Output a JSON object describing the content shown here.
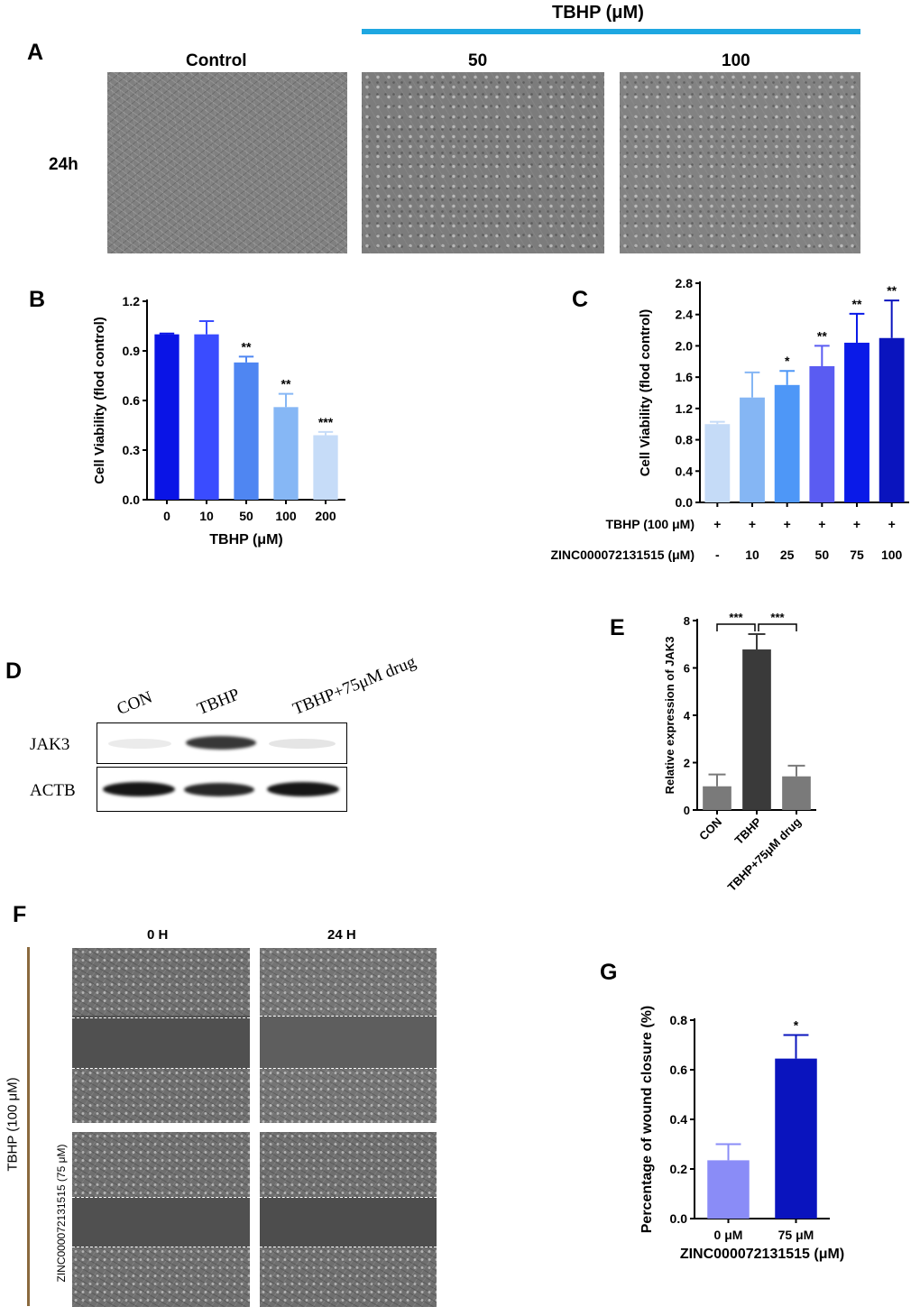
{
  "panel_A": {
    "letter": "A",
    "treatment_header": "TBHP (μM)",
    "columns": [
      "Control",
      "50",
      "100"
    ],
    "row_label": "24h",
    "bar_color": "#1ea7e1"
  },
  "panel_D": {
    "letter": "D",
    "lanes": [
      "CON",
      "TBHP",
      "TBHP+75μM drug"
    ],
    "rows": [
      "JAK3",
      "ACTB"
    ],
    "jak3_band_intensity": [
      0.08,
      0.85,
      0.1
    ],
    "actb_band_intensity": [
      0.95,
      0.9,
      0.95
    ]
  },
  "panel_F": {
    "letter": "F",
    "columns": [
      "0 H",
      "24 H"
    ],
    "outer_label": "TBHP (100 μM)",
    "row_label_bottom": "ZINC000072131515 (75 μM)",
    "bracket_color": "#8b6a3e"
  },
  "chart_data": [
    {
      "panel": "B",
      "type": "bar",
      "categories": [
        "0",
        "10",
        "50",
        "100",
        "200"
      ],
      "values": [
        1.0,
        1.0,
        0.83,
        0.56,
        0.39
      ],
      "errors": [
        0.005,
        0.08,
        0.035,
        0.08,
        0.02
      ],
      "significance": [
        "",
        "",
        "**",
        "**",
        "***"
      ],
      "colors": [
        "#0a14e6",
        "#3a4cff",
        "#4f86f2",
        "#86b7f5",
        "#c6dcf8"
      ],
      "xlabel": "TBHP (μM)",
      "ylabel": "Cell Viability (flod control)",
      "ylim": [
        0,
        1.2
      ],
      "yticks": [
        "0.0",
        "0.3",
        "0.6",
        "0.9",
        "1.2"
      ]
    },
    {
      "panel": "C",
      "type": "bar",
      "categories": [
        "-",
        "10",
        "25",
        "50",
        "75",
        "100"
      ],
      "values": [
        1.0,
        1.34,
        1.5,
        1.74,
        2.04,
        2.1
      ],
      "errors": [
        0.03,
        0.32,
        0.18,
        0.26,
        0.37,
        0.48
      ],
      "significance": [
        "",
        "",
        "*",
        "**",
        "**",
        "**"
      ],
      "colors": [
        "#c5dbf7",
        "#85b6f4",
        "#4e97f7",
        "#5a5cf2",
        "#0a1ae8",
        "#0a14be"
      ],
      "row_labels": [
        "TBHP (100 μM)",
        "ZINC000072131515 (μM)"
      ],
      "tbhp_row": [
        "+",
        "+",
        "+",
        "+",
        "+",
        "+"
      ],
      "ylabel": "Cell Viability (flod control)",
      "ylim": [
        0,
        2.8
      ],
      "yticks": [
        "0.0",
        "0.4",
        "0.8",
        "1.2",
        "1.6",
        "2.0",
        "2.4",
        "2.8"
      ]
    },
    {
      "panel": "E",
      "type": "bar",
      "categories": [
        "CON",
        "TBHP",
        "TBHP+75μM drug"
      ],
      "values": [
        1.0,
        6.78,
        1.42
      ],
      "errors": [
        0.5,
        0.65,
        0.45
      ],
      "significance_brackets": [
        "***",
        "***"
      ],
      "colors": [
        "#7a7a7a",
        "#3a3a3a",
        "#7a7a7a"
      ],
      "ylabel": "Relative expression of JAK3",
      "ylim": [
        0,
        8
      ],
      "yticks": [
        "0",
        "2",
        "4",
        "6",
        "8"
      ]
    },
    {
      "panel": "G",
      "type": "bar",
      "categories": [
        "0 μM",
        "75 μM"
      ],
      "values": [
        0.235,
        0.645
      ],
      "errors": [
        0.065,
        0.095
      ],
      "significance": [
        "",
        "*"
      ],
      "colors": [
        "#8a8cf7",
        "#0a14be"
      ],
      "xlabel": "ZINC000072131515 (μM)",
      "ylabel": "Percentage of wound closure (%)",
      "ylim": [
        0,
        0.8
      ],
      "yticks": [
        "0.0",
        "0.2",
        "0.4",
        "0.6",
        "0.8"
      ]
    }
  ]
}
